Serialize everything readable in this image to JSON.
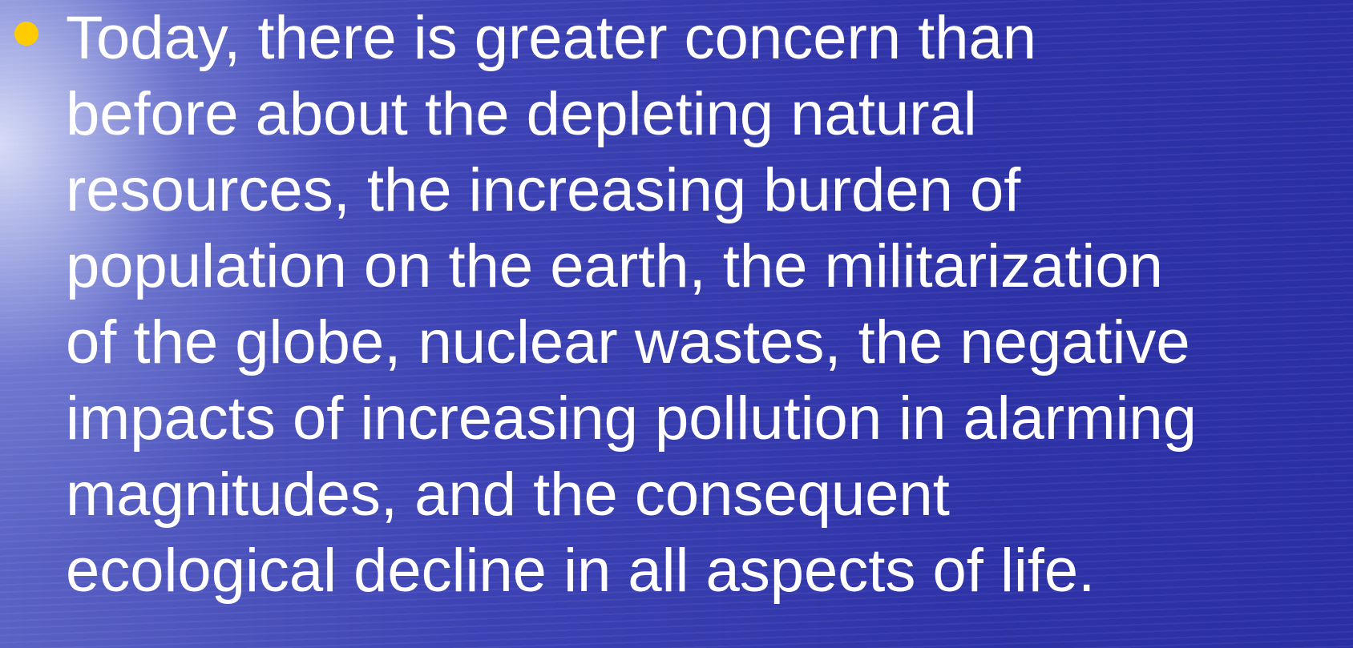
{
  "bullet": {
    "lines": [
      "Today, there is greater concern than",
      "before about the depleting natural",
      "resources, the increasing burden of",
      "population on the earth, the militarization",
      "of the globe, nuclear wastes, the negative",
      "impacts of increasing pollution in alarming",
      "magnitudes, and the consequent",
      "ecological decline in all aspects of life."
    ]
  }
}
